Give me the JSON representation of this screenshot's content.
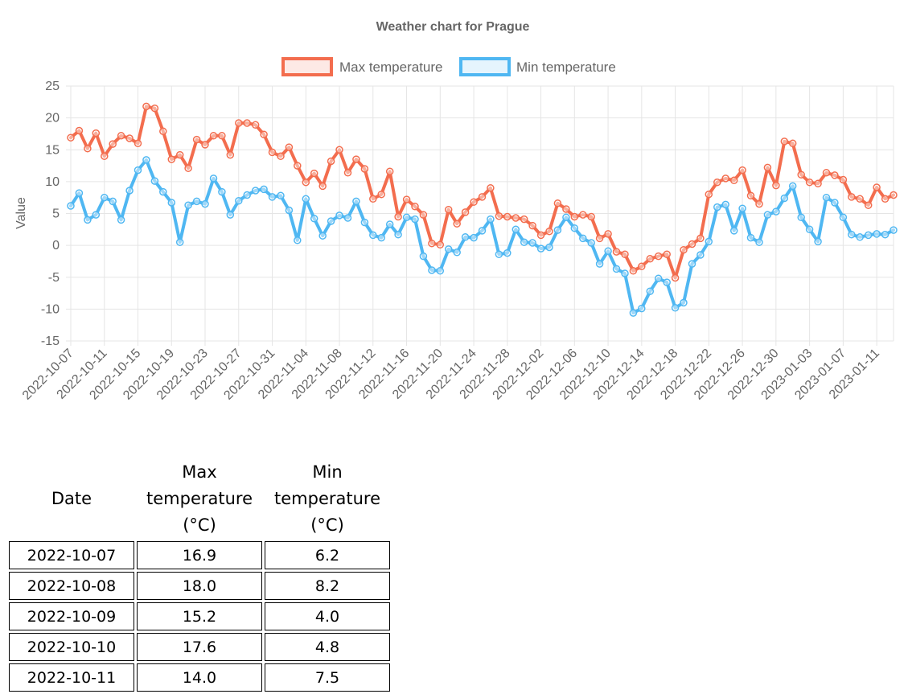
{
  "colors": {
    "max": "#F36D4E",
    "min": "#4FB7F2",
    "grid": "#e5e5e5",
    "text": "#666666"
  },
  "chart_data": {
    "type": "line",
    "title": "Weather chart for Prague",
    "ylabel": "Value",
    "xlabel": "",
    "ylim": [
      -15,
      25
    ],
    "yticks": [
      25,
      20,
      15,
      10,
      5,
      0,
      -5,
      -10,
      -15
    ],
    "x_tick_labels": [
      "2022-10-07",
      "2022-10-11",
      "2022-10-15",
      "2022-10-19",
      "2022-10-23",
      "2022-10-27",
      "2022-10-31",
      "2022-11-04",
      "2022-11-08",
      "2022-11-12",
      "2022-11-16",
      "2022-11-20",
      "2022-11-24",
      "2022-11-28",
      "2022-12-02",
      "2022-12-06",
      "2022-12-10",
      "2022-12-14",
      "2022-12-18",
      "2022-12-22",
      "2022-12-26",
      "2022-12-30",
      "2023-01-03",
      "2023-01-07",
      "2023-01-11"
    ],
    "grid": true,
    "legend_position": "top",
    "start_date": "2022-10-07",
    "series": [
      {
        "name": "Max temperature",
        "values": [
          16.9,
          18.0,
          15.2,
          17.6,
          14.0,
          15.9,
          17.2,
          16.8,
          16.0,
          21.8,
          21.5,
          17.9,
          13.5,
          14.2,
          12.1,
          16.6,
          15.8,
          17.2,
          17.2,
          14.2,
          19.2,
          19.2,
          18.9,
          17.4,
          14.6,
          14.0,
          15.4,
          12.5,
          9.9,
          11.3,
          9.3,
          13.2,
          15.0,
          11.4,
          13.5,
          12.0,
          7.3,
          8.0,
          11.6,
          4.5,
          7.2,
          6.1,
          4.8,
          0.3,
          0.1,
          5.6,
          3.4,
          5.2,
          6.8,
          7.6,
          9.0,
          4.6,
          4.5,
          4.3,
          4.1,
          3.1,
          1.6,
          2.2,
          6.6,
          5.7,
          4.5,
          4.8,
          4.5,
          1.1,
          1.8,
          -1.0,
          -1.4,
          -4.0,
          -3.3,
          -2.1,
          -1.7,
          -1.4,
          -5.1,
          -0.7,
          0.2,
          1.1,
          8.0,
          9.9,
          10.5,
          10.2,
          11.8,
          7.8,
          6.5,
          12.2,
          9.4,
          16.3,
          16.0,
          11.1,
          9.9,
          9.7,
          11.4,
          11.0,
          10.3,
          7.6,
          7.3,
          6.3,
          9.1,
          7.3,
          7.9
        ]
      },
      {
        "name": "Min temperature",
        "values": [
          6.2,
          8.2,
          4.0,
          4.8,
          7.5,
          6.9,
          4.0,
          8.6,
          11.8,
          13.4,
          10.1,
          8.4,
          6.7,
          0.5,
          6.3,
          6.9,
          6.5,
          10.5,
          8.4,
          4.8,
          7.0,
          7.9,
          8.6,
          8.8,
          7.6,
          7.8,
          5.5,
          0.8,
          7.3,
          4.2,
          1.5,
          3.8,
          4.7,
          4.3,
          6.9,
          3.6,
          1.6,
          1.2,
          3.3,
          1.7,
          4.4,
          4.1,
          -1.7,
          -3.9,
          -4.0,
          -0.6,
          -1.1,
          1.3,
          1.2,
          2.3,
          4.1,
          -1.4,
          -1.2,
          2.5,
          0.5,
          0.4,
          -0.5,
          -0.3,
          2.4,
          4.4,
          2.7,
          1.1,
          0.4,
          -2.9,
          -0.9,
          -3.7,
          -4.4,
          -10.6,
          -9.9,
          -7.2,
          -5.2,
          -5.8,
          -9.8,
          -9.0,
          -2.9,
          -1.5,
          0.6,
          6.0,
          6.4,
          2.3,
          5.8,
          1.2,
          0.5,
          4.8,
          5.3,
          7.4,
          9.3,
          4.4,
          2.5,
          0.6,
          7.5,
          6.7,
          4.4,
          1.7,
          1.3,
          1.6,
          1.8,
          1.7,
          2.4
        ]
      }
    ]
  },
  "table": {
    "headers": {
      "date": "Date",
      "max_line1": "Max",
      "max_line2": "temperature",
      "max_line3": "(°C)",
      "min_line1": "Min",
      "min_line2": "temperature",
      "min_line3": "(°C)"
    },
    "rows": [
      {
        "date": "2022-10-07",
        "max": "16.9",
        "min": "6.2"
      },
      {
        "date": "2022-10-08",
        "max": "18.0",
        "min": "8.2"
      },
      {
        "date": "2022-10-09",
        "max": "15.2",
        "min": "4.0"
      },
      {
        "date": "2022-10-10",
        "max": "17.6",
        "min": "4.8"
      },
      {
        "date": "2022-10-11",
        "max": "14.0",
        "min": "7.5"
      }
    ]
  }
}
